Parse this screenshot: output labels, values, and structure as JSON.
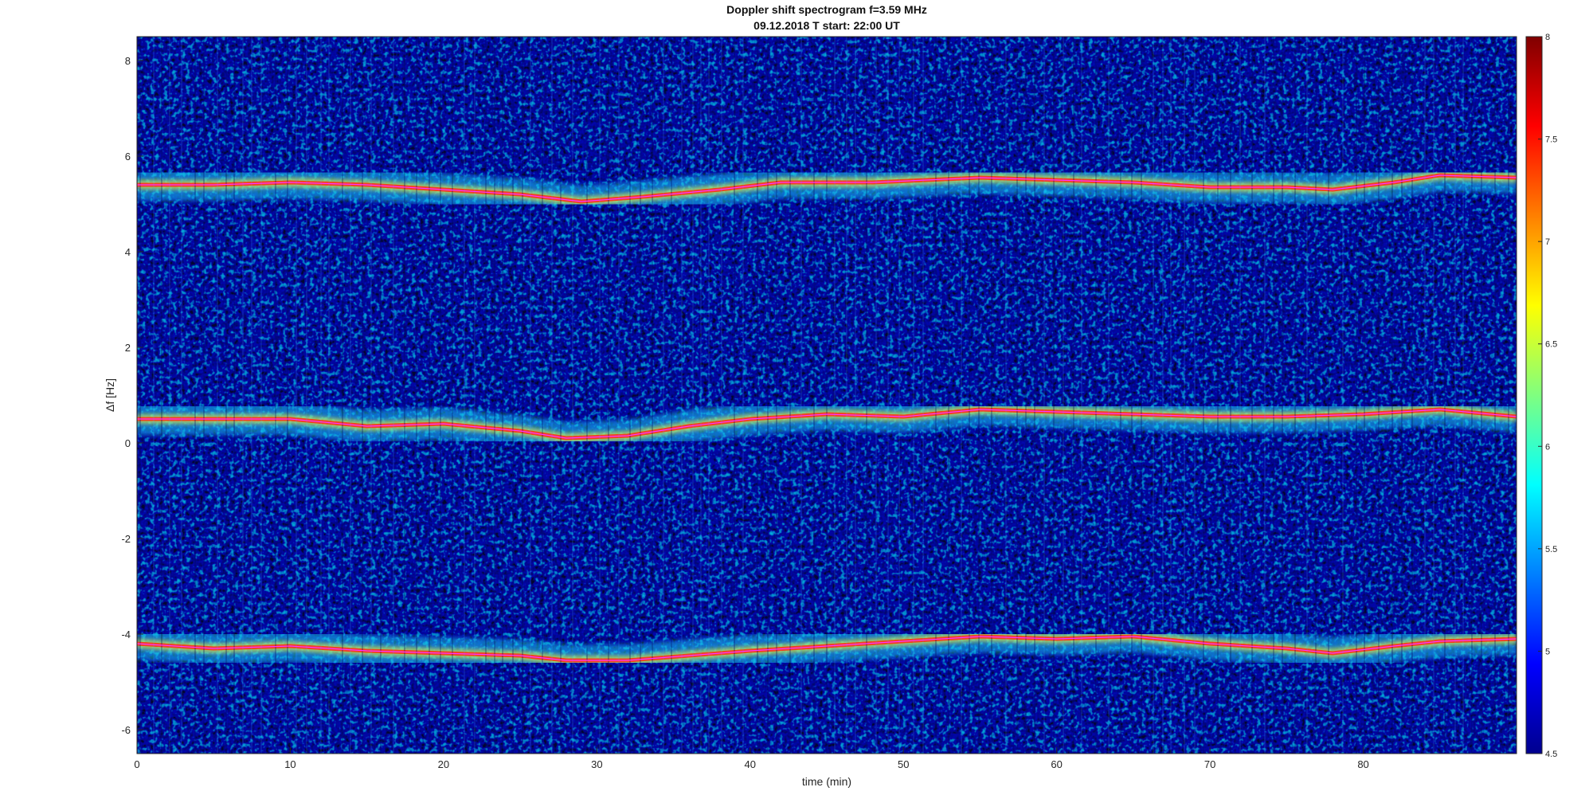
{
  "chart_data": {
    "type": "heatmap",
    "title": "Doppler shift spectrogram f=3.59 MHz",
    "subtitle": "09.12.2018   T start: 22:00 UT",
    "xlabel": "time (min)",
    "ylabel": "Δf [Hz]",
    "xlim": [
      0,
      90
    ],
    "ylim": [
      -6.5,
      8.5
    ],
    "xticks": [
      "0",
      "10",
      "20",
      "30",
      "40",
      "50",
      "60",
      "70",
      "80"
    ],
    "xtick_values": [
      0,
      10,
      20,
      30,
      40,
      50,
      60,
      70,
      80
    ],
    "yticks": [
      "-6",
      "-4",
      "-2",
      "0",
      "2",
      "4",
      "6",
      "8"
    ],
    "ytick_values": [
      -6,
      -4,
      -2,
      0,
      2,
      4,
      6,
      8
    ],
    "colorbar": {
      "range": [
        4.5,
        8
      ],
      "ticks": [
        "4.5",
        "5",
        "5.5",
        "6",
        "6.5",
        "7",
        "7.5",
        "8"
      ],
      "tick_values": [
        4.5,
        5,
        5.5,
        6,
        6.5,
        7,
        7.5,
        8
      ],
      "colormap": "jet"
    },
    "grid": false,
    "traces": [
      {
        "x": [
          0,
          5,
          10,
          15,
          20,
          25,
          29,
          33,
          38,
          42,
          48,
          55,
          60,
          65,
          70,
          75,
          78,
          82,
          85,
          90
        ],
        "y": [
          5.4,
          5.4,
          5.45,
          5.4,
          5.3,
          5.2,
          5.05,
          5.15,
          5.3,
          5.45,
          5.45,
          5.55,
          5.5,
          5.45,
          5.35,
          5.35,
          5.3,
          5.45,
          5.6,
          5.55
        ],
        "color": "#ff33ff"
      },
      {
        "x": [
          0,
          5,
          10,
          15,
          20,
          25,
          28,
          32,
          36,
          40,
          45,
          50,
          55,
          60,
          65,
          70,
          75,
          80,
          85,
          90
        ],
        "y": [
          0.5,
          0.5,
          0.5,
          0.35,
          0.4,
          0.25,
          0.1,
          0.15,
          0.35,
          0.5,
          0.6,
          0.55,
          0.7,
          0.65,
          0.6,
          0.55,
          0.55,
          0.6,
          0.7,
          0.55
        ],
        "color": "#ff33ff"
      },
      {
        "x": [
          0,
          5,
          10,
          15,
          20,
          25,
          28,
          32,
          36,
          40,
          45,
          50,
          55,
          60,
          65,
          70,
          75,
          78,
          82,
          85,
          90
        ],
        "y": [
          -4.2,
          -4.3,
          -4.25,
          -4.35,
          -4.4,
          -4.45,
          -4.55,
          -4.55,
          -4.45,
          -4.35,
          -4.25,
          -4.15,
          -4.05,
          -4.1,
          -4.05,
          -4.2,
          -4.3,
          -4.4,
          -4.25,
          -4.15,
          -4.1
        ],
        "color": "#ff33ff"
      }
    ]
  }
}
